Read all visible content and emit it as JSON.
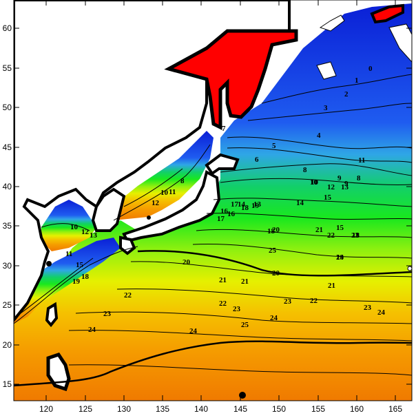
{
  "map": {
    "x_axis": {
      "ticks": [
        "120",
        "125",
        "130",
        "135",
        "140",
        "145",
        "150",
        "155",
        "160",
        "165"
      ]
    },
    "y_axis": {
      "ticks": [
        "60",
        "55",
        "50",
        "45",
        "40",
        "35",
        "30",
        "25",
        "20",
        "15"
      ]
    },
    "colors": {
      "land_outline": "#000000",
      "land_fill": "#ffffff",
      "highlight_land": "#ff0000",
      "scale": [
        "#0a1fd6",
        "#1f5cf0",
        "#2fa6e6",
        "#12cf6a",
        "#19e81e",
        "#8ff00f",
        "#e6f000",
        "#f5c000",
        "#f59a00",
        "#f07a00"
      ]
    },
    "contour_labels": [
      {
        "text": "0"
      },
      {
        "text": "1"
      },
      {
        "text": "2"
      },
      {
        "text": "3"
      },
      {
        "text": "4"
      },
      {
        "text": "5"
      },
      {
        "text": "6"
      },
      {
        "text": "7"
      },
      {
        "text": "8"
      },
      {
        "text": "9"
      },
      {
        "text": "10"
      },
      {
        "text": "11"
      },
      {
        "text": "12"
      },
      {
        "text": "13"
      },
      {
        "text": "14"
      },
      {
        "text": "15"
      },
      {
        "text": "16"
      },
      {
        "text": "17"
      },
      {
        "text": "18"
      },
      {
        "text": "19"
      },
      {
        "text": "20"
      },
      {
        "text": "21"
      },
      {
        "text": "22"
      },
      {
        "text": "23"
      },
      {
        "text": "24"
      },
      {
        "text": "25"
      }
    ]
  }
}
